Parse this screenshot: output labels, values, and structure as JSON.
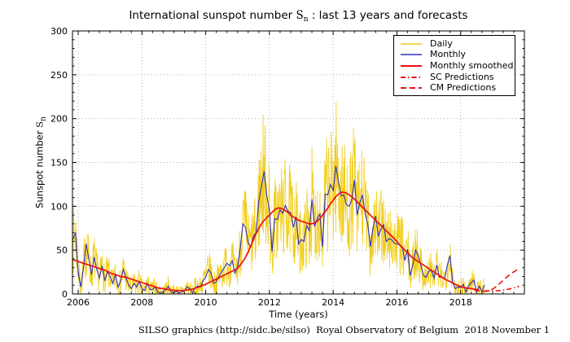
{
  "title": {
    "prefix": "International sunspot number ",
    "symbol": "S",
    "sub": "n",
    "suffix": " : last 13 years and forecasts"
  },
  "footer": {
    "text": "SILSO graphics (http://sidc.be/silso)  Royal Observatory of Belgium  2018 November 1"
  },
  "legend": {
    "position": "upper-right-inside",
    "items": [
      {
        "label": "Daily",
        "color": "#F2CE1B",
        "style": "solid",
        "width": 1.5
      },
      {
        "label": "Monthly",
        "color": "#3030C0",
        "style": "solid",
        "width": 1.5
      },
      {
        "label": "Monthly smoothed",
        "color": "#EE1111",
        "style": "solid",
        "width": 2
      },
      {
        "label": "SC Predictions",
        "color": "#EE1111",
        "style": "dashdot",
        "width": 2
      },
      {
        "label": "CM Predictions",
        "color": "#EE1111",
        "style": "dashed",
        "width": 2
      }
    ]
  },
  "chart_data": {
    "type": "line",
    "title": "International sunspot number Sn : last 13 years and forecasts",
    "xlabel": "Time (years)",
    "ylabel_parts": {
      "prefix": "Sunspot number ",
      "symbol": "S",
      "sub": "n"
    },
    "xlim": [
      2005.82,
      2020.0
    ],
    "ylim": [
      0,
      300
    ],
    "x_ticks": [
      2006,
      2008,
      2010,
      2012,
      2014,
      2016,
      2018
    ],
    "y_ticks": [
      0,
      50,
      100,
      150,
      200,
      250,
      300
    ],
    "x_minor_step": 0.3333333,
    "y_minor_step": 10,
    "grid": "dotted",
    "grid_color": "#AAAAAA",
    "series": [
      {
        "name": "Daily",
        "color": "#F2CE1B",
        "style": "solid",
        "width": 0.8,
        "derived": {
          "from": "Monthly",
          "samples_per_month": 8,
          "amplitude_factor": 0.5,
          "base_amplitude": 8,
          "seed": 7,
          "x_end": 2018.83
        }
      },
      {
        "name": "Monthly",
        "color": "#3030C0",
        "style": "solid",
        "width": 1.1,
        "x_start": 2005.8333,
        "x_step": 0.0833333,
        "values": [
          62,
          70,
          25,
          8,
          30,
          57,
          40,
          22,
          42,
          28,
          18,
          32,
          15,
          25,
          20,
          12,
          22,
          8,
          15,
          28,
          18,
          10,
          6,
          12,
          8,
          14,
          6,
          4,
          12,
          5,
          5,
          8,
          2,
          1,
          3,
          5,
          9,
          2,
          2,
          3,
          1,
          2,
          4,
          8,
          6,
          1,
          7,
          9,
          8,
          15,
          19,
          28,
          24,
          12,
          14,
          20,
          25,
          30,
          35,
          32,
          38,
          24,
          30,
          52,
          80,
          76,
          58,
          54,
          66,
          70,
          106,
          123,
          140,
          112,
          95,
          48,
          86,
          85,
          96,
          92,
          101,
          94,
          93,
          76,
          88,
          57,
          62,
          60,
          78,
          72,
          108,
          77,
          86,
          91,
          54,
          114,
          113,
          125,
          118,
          146,
          128,
          112,
          113,
          102,
          100,
          107,
          130,
          90,
          104,
          113,
          93,
          80,
          54,
          75,
          89,
          66,
          74,
          79,
          60,
          63,
          62,
          58,
          57,
          56,
          54,
          38,
          51,
          21,
          33,
          50,
          44,
          33,
          21,
          19,
          26,
          27,
          18,
          33,
          19,
          19,
          18,
          33,
          44,
          13,
          6,
          8,
          7,
          11,
          2,
          9,
          13,
          16,
          2,
          9,
          3,
          10
        ]
      },
      {
        "name": "Monthly smoothed",
        "color": "#EE1111",
        "style": "solid",
        "width": 1.7,
        "x_start": 2005.8333,
        "x_step": 0.0833333,
        "values": [
          39,
          38,
          37,
          36,
          35,
          34,
          33,
          32,
          31,
          30,
          29,
          28,
          27,
          26,
          24,
          23,
          22,
          21,
          20,
          19.5,
          19,
          18,
          17,
          16,
          15,
          14,
          13,
          12,
          11,
          10,
          9,
          8,
          7,
          6.5,
          6,
          5.5,
          5,
          4.5,
          4.2,
          4,
          3.8,
          3.8,
          4,
          4.5,
          5,
          5.5,
          6.5,
          7.5,
          8.5,
          10,
          11,
          12.5,
          14,
          15.5,
          17,
          18.5,
          20,
          21.5,
          23,
          24.5,
          26,
          27.5,
          29.5,
          33,
          37,
          42,
          48,
          55,
          62,
          69,
          75,
          80,
          84,
          87,
          90,
          93,
          96,
          98,
          98,
          97,
          95,
          93,
          90,
          88,
          86,
          84,
          83,
          82,
          81,
          80,
          80,
          81,
          83,
          86,
          90,
          94,
          98,
          103,
          107,
          111,
          114,
          116,
          116,
          115,
          113,
          111,
          108,
          105,
          102,
          99,
          96,
          93,
          90,
          87,
          84,
          81,
          78,
          75,
          72,
          69,
          66,
          63,
          60,
          56,
          53,
          50,
          47,
          44,
          41,
          39,
          37,
          35,
          33,
          31,
          29,
          27,
          25,
          23,
          21,
          19,
          17,
          15.5,
          14,
          12.5,
          11,
          9.5,
          8.5,
          7.5,
          7,
          6.5,
          6,
          5.8
        ]
      },
      {
        "name": "SC Predictions",
        "color": "#EE1111",
        "style": "dashdot",
        "width": 1.6,
        "x_start": 2018.4167,
        "x_step": 0.0833333,
        "values": [
          5.5,
          5,
          4.5,
          4,
          3.7,
          3.5,
          3.4,
          3.4,
          3.5,
          3.7,
          4,
          4.4,
          4.9,
          5.5,
          6.2,
          7,
          7.8,
          8.7
        ]
      },
      {
        "name": "CM Predictions",
        "color": "#EE1111",
        "style": "dashed",
        "width": 1.6,
        "x_start": 2018.4167,
        "x_step": 0.0833333,
        "values": [
          5,
          4.2,
          3.6,
          3.2,
          3,
          3.2,
          4,
          5.5,
          7.5,
          10,
          12.7,
          15.5,
          18.2,
          20.8,
          23.2,
          25.3,
          27,
          28.4
        ]
      }
    ]
  }
}
